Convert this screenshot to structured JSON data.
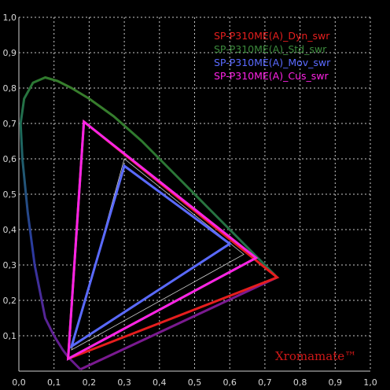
{
  "chart_data": {
    "type": "scatter",
    "title": "",
    "xlabel": "",
    "ylabel": "",
    "xlim": [
      0,
      1
    ],
    "ylim": [
      0,
      1
    ],
    "grid": true,
    "legend_position": "top-right",
    "x_ticks": [
      "0,0",
      "0,1",
      "0,2",
      "0,3",
      "0,4",
      "0,5",
      "0,6",
      "0,7",
      "0,8",
      "0,9",
      "1,0"
    ],
    "y_ticks": [
      "0,1",
      "0,2",
      "0,3",
      "0,4",
      "0,5",
      "0,6",
      "0,7",
      "0,8",
      "0,9",
      "1,0"
    ],
    "spectral_locus": [
      [
        0.175,
        0.005
      ],
      [
        0.17,
        0.01
      ],
      [
        0.16,
        0.02
      ],
      [
        0.14,
        0.04
      ],
      [
        0.125,
        0.06
      ],
      [
        0.1,
        0.1
      ],
      [
        0.075,
        0.15
      ],
      [
        0.045,
        0.3
      ],
      [
        0.025,
        0.45
      ],
      [
        0.01,
        0.6
      ],
      [
        0.005,
        0.7
      ],
      [
        0.015,
        0.77
      ],
      [
        0.04,
        0.815
      ],
      [
        0.075,
        0.83
      ],
      [
        0.11,
        0.82
      ],
      [
        0.15,
        0.8
      ],
      [
        0.2,
        0.77
      ],
      [
        0.27,
        0.72
      ],
      [
        0.35,
        0.65
      ],
      [
        0.44,
        0.56
      ],
      [
        0.53,
        0.47
      ],
      [
        0.6,
        0.4
      ],
      [
        0.69,
        0.31
      ],
      [
        0.735,
        0.265
      ]
    ],
    "series": [
      {
        "name": "SP-P310ME(A)_Dyn_swr",
        "color": "#e61e1e",
        "points": [
          [
            0.735,
            0.265
          ],
          [
            0.185,
            0.705
          ],
          [
            0.14,
            0.035
          ]
        ]
      },
      {
        "name": "SP-P310ME(A)_Std_swr",
        "color": "#3c8a3c",
        "points": [
          [
            0.675,
            0.32
          ],
          [
            0.185,
            0.705
          ],
          [
            0.14,
            0.035
          ]
        ]
      },
      {
        "name": "SP-P310ME(A)_Mov_swr",
        "color": "#5a6aff",
        "points": [
          [
            0.6,
            0.36
          ],
          [
            0.3,
            0.58
          ],
          [
            0.15,
            0.07
          ]
        ]
      },
      {
        "name": "SP-P310ME(A)_Cus_swr",
        "color": "#ff22e6",
        "points": [
          [
            0.675,
            0.32
          ],
          [
            0.185,
            0.705
          ],
          [
            0.14,
            0.035
          ]
        ]
      }
    ],
    "reference_gamut": {
      "color": "#d0d0d0",
      "points": [
        [
          0.64,
          0.33
        ],
        [
          0.3,
          0.6
        ],
        [
          0.15,
          0.06
        ]
      ]
    }
  },
  "watermark": "Xromamate™"
}
